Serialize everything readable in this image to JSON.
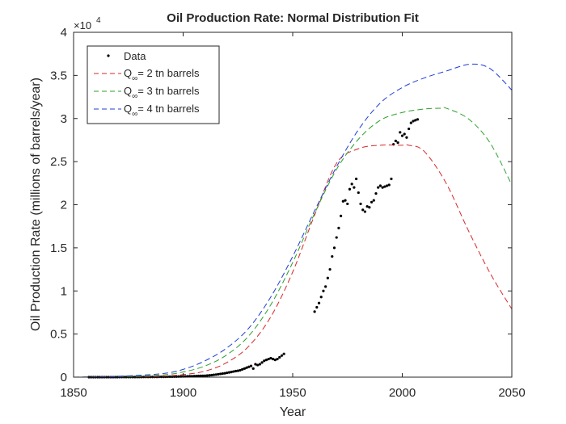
{
  "chart_data": {
    "type": "line",
    "title": "Oil Production Rate: Normal Distribution Fit",
    "xlabel": "Year",
    "ylabel": "Oil Production Rate (millions of barrels/year)",
    "xlim": [
      1850,
      2050
    ],
    "ylim": [
      0,
      4
    ],
    "y_multiplier_label": {
      "base": "×10",
      "exponent": "4"
    },
    "x_ticks": [
      1850,
      1900,
      1950,
      2000,
      2050
    ],
    "y_ticks": [
      0,
      0.5,
      1,
      1.5,
      2,
      2.5,
      3,
      3.5,
      4
    ],
    "y_tick_labels": [
      "0",
      "0.5",
      "1",
      "1.5",
      "2",
      "2.5",
      "3",
      "3.5",
      "4"
    ],
    "grid": false,
    "legend": {
      "placement": "top-left",
      "entries": [
        {
          "prefix": "Data",
          "sub": "",
          "suffix": ""
        },
        {
          "prefix": "Q",
          "sub": "∞",
          "suffix": "= 2 tn barrels"
        },
        {
          "prefix": "Q",
          "sub": "∞",
          "suffix": "= 3 tn barrels"
        },
        {
          "prefix": "Q",
          "sub": "∞",
          "suffix": "= 4 tn barrels"
        }
      ]
    },
    "series": [
      {
        "name": "Data",
        "style": "points",
        "color": "#000000",
        "x": [
          1857,
          1858,
          1859,
          1860,
          1861,
          1862,
          1863,
          1864,
          1865,
          1866,
          1867,
          1868,
          1869,
          1870,
          1871,
          1872,
          1873,
          1874,
          1875,
          1876,
          1877,
          1878,
          1879,
          1880,
          1881,
          1882,
          1883,
          1884,
          1885,
          1886,
          1887,
          1888,
          1889,
          1890,
          1891,
          1892,
          1893,
          1894,
          1895,
          1896,
          1897,
          1898,
          1899,
          1900,
          1901,
          1902,
          1903,
          1904,
          1905,
          1906,
          1907,
          1908,
          1909,
          1910,
          1911,
          1912,
          1913,
          1914,
          1915,
          1916,
          1917,
          1918,
          1919,
          1920,
          1921,
          1922,
          1923,
          1924,
          1925,
          1926,
          1927,
          1928,
          1929,
          1930,
          1931,
          1932,
          1933,
          1934,
          1935,
          1936,
          1937,
          1938,
          1939,
          1940,
          1941,
          1942,
          1943,
          1944,
          1945,
          1946,
          1960,
          1961,
          1962,
          1963,
          1964,
          1965,
          1966,
          1967,
          1968,
          1969,
          1970,
          1971,
          1972,
          1973,
          1974,
          1975,
          1976,
          1977,
          1978,
          1979,
          1980,
          1981,
          1982,
          1983,
          1984,
          1985,
          1986,
          1987,
          1988,
          1989,
          1990,
          1991,
          1992,
          1993,
          1994,
          1995,
          1996,
          1997,
          1998,
          1999,
          2000,
          2001,
          2002,
          2003,
          2004,
          2005,
          2006,
          2007
        ],
        "y": [
          0.0001,
          0.0001,
          0.0002,
          0.0002,
          0.0003,
          0.0003,
          0.0004,
          0.0004,
          0.0004,
          0.0005,
          0.0005,
          0.0005,
          0.0006,
          0.0006,
          0.0007,
          0.0008,
          0.0009,
          0.001,
          0.0011,
          0.0012,
          0.0013,
          0.0014,
          0.0015,
          0.0016,
          0.0017,
          0.0018,
          0.0019,
          0.0021,
          0.0023,
          0.0025,
          0.0027,
          0.0029,
          0.0031,
          0.0034,
          0.0037,
          0.004,
          0.0044,
          0.0048,
          0.0052,
          0.0057,
          0.0062,
          0.0068,
          0.0074,
          0.008,
          0.0087,
          0.0095,
          0.0103,
          0.0112,
          0.012,
          0.013,
          0.014,
          0.015,
          0.016,
          0.017,
          0.019,
          0.021,
          0.024,
          0.027,
          0.03,
          0.034,
          0.038,
          0.041,
          0.045,
          0.05,
          0.055,
          0.06,
          0.065,
          0.07,
          0.074,
          0.08,
          0.09,
          0.1,
          0.11,
          0.12,
          0.13,
          0.1,
          0.15,
          0.14,
          0.15,
          0.17,
          0.19,
          0.2,
          0.21,
          0.22,
          0.21,
          0.2,
          0.21,
          0.23,
          0.25,
          0.27,
          0.76,
          0.81,
          0.86,
          0.93,
          1.0,
          1.05,
          1.15,
          1.25,
          1.4,
          1.5,
          1.62,
          1.73,
          1.87,
          2.04,
          2.05,
          2.01,
          2.18,
          2.24,
          2.2,
          2.3,
          2.14,
          2.01,
          1.94,
          1.92,
          1.98,
          1.97,
          2.03,
          2.05,
          2.13,
          2.2,
          2.22,
          2.2,
          2.21,
          2.22,
          2.23,
          2.3,
          2.7,
          2.74,
          2.72,
          2.84,
          2.8,
          2.82,
          2.78,
          2.88,
          2.95,
          2.97,
          2.98,
          2.99
        ]
      },
      {
        "name": "Q∞= 2 tn barrels",
        "style": "dashed",
        "color": "#d62728",
        "peak_year": 2003,
        "peak_value": 2.69,
        "x": [
          1850,
          1870,
          1890,
          1900,
          1910,
          1920,
          1930,
          1940,
          1950,
          1960,
          1970,
          1980,
          1990,
          2000,
          2003,
          2010,
          2020,
          2030,
          2040,
          2050
        ],
        "y": [
          0.0,
          0.002,
          0.012,
          0.03,
          0.07,
          0.17,
          0.36,
          0.7,
          1.22,
          1.88,
          2.48,
          2.65,
          2.69,
          2.69,
          2.69,
          2.62,
          2.25,
          1.71,
          1.21,
          0.79
        ]
      },
      {
        "name": "Q∞= 3 tn barrels",
        "style": "dashed",
        "color": "#2ca02c",
        "peak_year": 2018,
        "peak_value": 3.12,
        "x": [
          1850,
          1870,
          1890,
          1900,
          1910,
          1920,
          1930,
          1940,
          1950,
          1960,
          1970,
          1980,
          1990,
          2000,
          2010,
          2018,
          2020,
          2030,
          2040,
          2050
        ],
        "y": [
          0.0,
          0.006,
          0.025,
          0.06,
          0.13,
          0.26,
          0.48,
          0.84,
          1.33,
          1.9,
          2.41,
          2.76,
          2.98,
          3.07,
          3.11,
          3.12,
          3.12,
          3.0,
          2.72,
          2.23
        ]
      },
      {
        "name": "Q∞= 4 tn barrels",
        "style": "dashed",
        "color": "#1f3cd6",
        "peak_year": 2031,
        "peak_value": 3.63,
        "x": [
          1850,
          1870,
          1890,
          1900,
          1910,
          1920,
          1930,
          1940,
          1950,
          1960,
          1970,
          1980,
          1990,
          2000,
          2010,
          2020,
          2031,
          2040,
          2050
        ],
        "y": [
          0.0,
          0.01,
          0.04,
          0.09,
          0.19,
          0.34,
          0.57,
          0.93,
          1.4,
          1.93,
          2.44,
          2.87,
          3.18,
          3.36,
          3.47,
          3.55,
          3.63,
          3.58,
          3.33
        ]
      }
    ]
  }
}
